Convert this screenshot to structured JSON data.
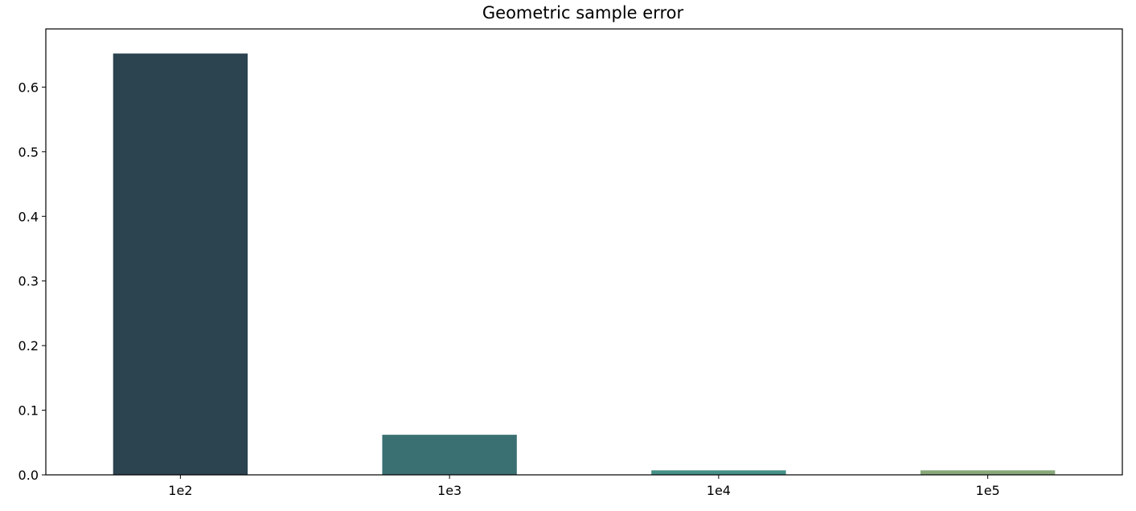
{
  "chart_data": {
    "type": "bar",
    "title": "Geometric sample error",
    "xlabel": "",
    "ylabel": "",
    "categories": [
      "1e2",
      "1e3",
      "1e4",
      "1e5"
    ],
    "values": [
      0.652,
      0.062,
      0.007,
      0.007
    ],
    "colors": [
      "#2c4350",
      "#3a7072",
      "#459187",
      "#88a87a"
    ],
    "ylim": [
      0,
      0.69
    ],
    "yticks": [
      0.0,
      0.1,
      0.2,
      0.3,
      0.4,
      0.5,
      0.6
    ],
    "ytick_labels": [
      "0.0",
      "0.1",
      "0.2",
      "0.3",
      "0.4",
      "0.5",
      "0.6"
    ],
    "grid": false,
    "legend": "none"
  }
}
